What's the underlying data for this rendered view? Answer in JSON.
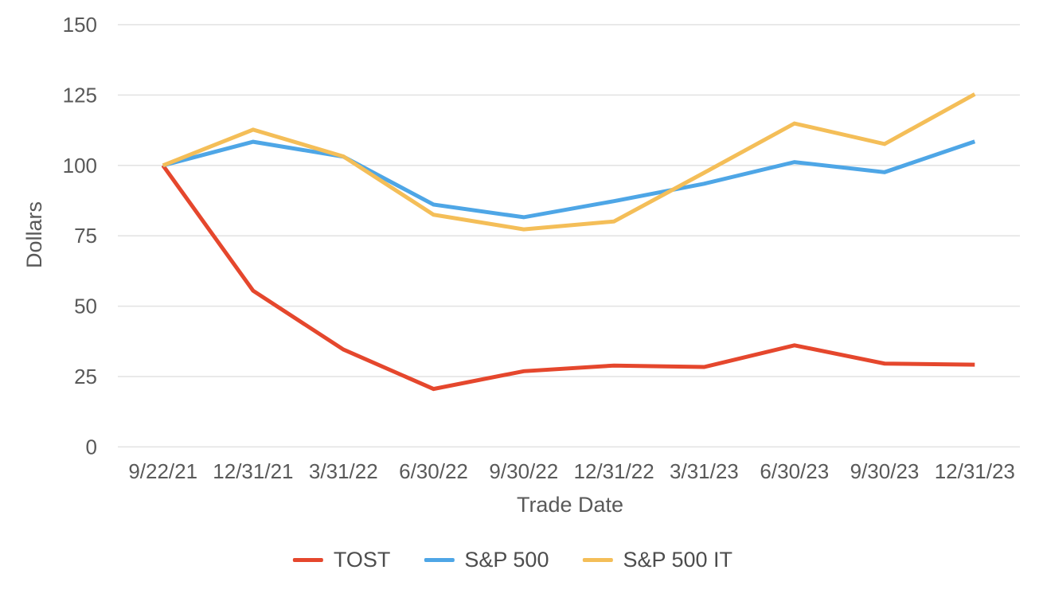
{
  "chart_data": {
    "type": "line",
    "title": "",
    "xlabel": "Trade Date",
    "ylabel": "Dollars",
    "ylim": [
      0,
      150
    ],
    "yticks": [
      0,
      25,
      50,
      75,
      100,
      125,
      150
    ],
    "grid": "horizontal",
    "legend_position": "bottom",
    "categories": [
      "9/22/21",
      "12/31/21",
      "3/31/22",
      "6/30/22",
      "9/30/22",
      "12/31/22",
      "3/31/23",
      "6/30/23",
      "9/30/23",
      "12/31/23"
    ],
    "series": [
      {
        "name": "TOST",
        "color": "#e5472d",
        "values": [
          100,
          55.5,
          34.6,
          20.6,
          26.9,
          28.9,
          28.4,
          36.1,
          29.6,
          29.2
        ]
      },
      {
        "name": "S&P 500",
        "color": "#4ea6e6",
        "values": [
          100,
          108.4,
          103.1,
          86.1,
          81.6,
          87.3,
          93.5,
          101.2,
          97.6,
          108.5
        ]
      },
      {
        "name": "S&P 500 IT",
        "color": "#f4be58",
        "values": [
          100,
          112.7,
          103.2,
          82.5,
          77.3,
          80.1,
          97.4,
          114.9,
          107.6,
          125.3
        ]
      }
    ],
    "colors": {
      "grid": "#e2e2e2",
      "tick_text": "#595959",
      "legend_text": "#4d4d4d"
    }
  }
}
